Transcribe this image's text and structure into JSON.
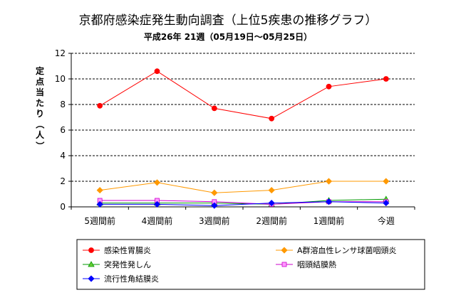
{
  "chart_data": {
    "type": "line",
    "title": "京都府感染症発生動向調査（上位5疾患の推移グラフ）",
    "subtitle": "平成26年 21週（05月19日〜05月25日）",
    "ylabel": "定点当たり（人）",
    "xlabel": "",
    "categories": [
      "5週間前",
      "4週間前",
      "3週間前",
      "2週間前",
      "1週間前",
      "今週"
    ],
    "ylim": [
      0,
      12
    ],
    "yticks": [
      "0",
      "2",
      "4",
      "6",
      "8",
      "10",
      "12"
    ],
    "grid": "horizontal dashed",
    "legend_position": "bottom",
    "series": [
      {
        "name": "感染性胃腸炎",
        "color": "#ff0000",
        "marker": "circle",
        "marker_fill": "#ff0000",
        "values": [
          7.9,
          10.6,
          7.7,
          6.9,
          9.4,
          10.0
        ]
      },
      {
        "name": "A群溶血性レンサ球菌咽頭炎",
        "color": "#ff9900",
        "marker": "diamond",
        "marker_fill": "#ff9900",
        "values": [
          1.3,
          1.9,
          1.1,
          1.3,
          2.0,
          2.0
        ]
      },
      {
        "name": "突発性発しん",
        "color": "#009900",
        "marker": "triangle",
        "marker_fill": "#66cc33",
        "values": [
          0.3,
          0.3,
          0.3,
          0.2,
          0.5,
          0.6
        ]
      },
      {
        "name": "咽頭結膜熱",
        "color": "#cc00cc",
        "marker": "square",
        "marker_fill": "#ff99ff",
        "values": [
          0.5,
          0.5,
          0.4,
          0.2,
          0.4,
          0.4
        ]
      },
      {
        "name": "流行性角結膜炎",
        "color": "#0000ff",
        "marker": "diamond",
        "marker_fill": "#0000ff",
        "values": [
          0.2,
          0.2,
          0.1,
          0.3,
          0.4,
          0.3
        ]
      }
    ]
  }
}
